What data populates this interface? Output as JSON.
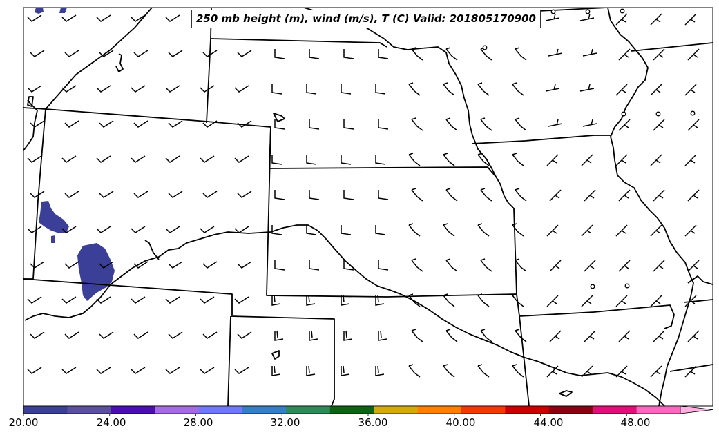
{
  "title": "250 mb height (m), wind (m/s), T (C) Valid: 201805170900",
  "colorbar": {
    "colors": [
      "#3b3f97",
      "#5a4fa0",
      "#4b0eb0",
      "#a66ae6",
      "#6f78ff",
      "#347fca",
      "#2c8b57",
      "#0b6414",
      "#d4a90b",
      "#ff7f00",
      "#f03a00",
      "#c80000",
      "#8b0010",
      "#e0107a",
      "#ff66c0",
      "#ffb0e0"
    ],
    "tick_labels": [
      "20.00",
      "24.00",
      "28.00",
      "32.00",
      "36.00",
      "40.00",
      "44.00",
      "48.00"
    ],
    "min": 20,
    "max": 52,
    "tick_values": [
      20,
      24,
      28,
      32,
      36,
      40,
      44,
      48
    ]
  },
  "map": {
    "shaded_field_color": "#3b3f97",
    "boundary_color": "#000000",
    "region": "Central United States (Utah/Colorado/Kansas/Nebraska/Iowa/Missouri/Illinois area)",
    "wind_barbs_shown": true,
    "calm_circles_shown": true
  }
}
